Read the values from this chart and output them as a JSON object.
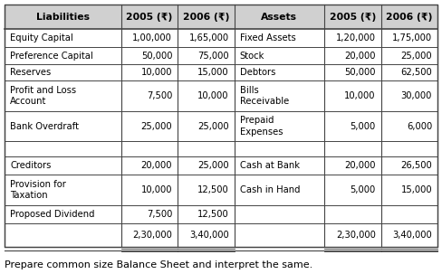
{
  "title": "Prepare common size Balance Sheet and interpret the same.",
  "headers": [
    "Liabilities",
    "2005 (₹)",
    "2006 (₹)",
    "Assets",
    "2005 (₹)",
    "2006 (₹)"
  ],
  "liabilities": [
    [
      "Equity Capital",
      "1,00,000",
      "1,65,000"
    ],
    [
      "Preference Capital",
      "50,000",
      "75,000"
    ],
    [
      "Reserves",
      "10,000",
      "15,000"
    ],
    [
      "Profit and Loss\nAccount",
      "7,500",
      "10,000"
    ],
    [
      "Bank Overdraft",
      "25,000",
      "25,000"
    ],
    [
      "",
      "",
      ""
    ],
    [
      "Creditors",
      "20,000",
      "25,000"
    ],
    [
      "Provision for\nTaxation",
      "10,000",
      "12,500"
    ],
    [
      "Proposed Dividend",
      "7,500",
      "12,500"
    ]
  ],
  "assets": [
    [
      "Fixed Assets",
      "1,20,000",
      "1,75,000"
    ],
    [
      "Stock",
      "20,000",
      "25,000"
    ],
    [
      "Debtors",
      "50,000",
      "62,500"
    ],
    [
      "Bills\nReceivable",
      "10,000",
      "30,000"
    ],
    [
      "Prepaid\nExpenses",
      "5,000",
      "6,000"
    ],
    [
      "",
      "",
      ""
    ],
    [
      "Cash at Bank",
      "20,000",
      "26,500"
    ],
    [
      "Cash in Hand",
      "5,000",
      "15,000"
    ],
    [
      "",
      "",
      ""
    ]
  ],
  "totals_liab": [
    "2,30,000",
    "3,40,000"
  ],
  "totals_assets": [
    "2,30,000",
    "3,40,000"
  ],
  "bg_color": "#ffffff",
  "header_bg": "#d0d0d0",
  "grid_color": "#444444",
  "text_color": "#000000",
  "header_fontsize": 7.8,
  "data_fontsize": 7.2,
  "caption_fontsize": 8.0
}
